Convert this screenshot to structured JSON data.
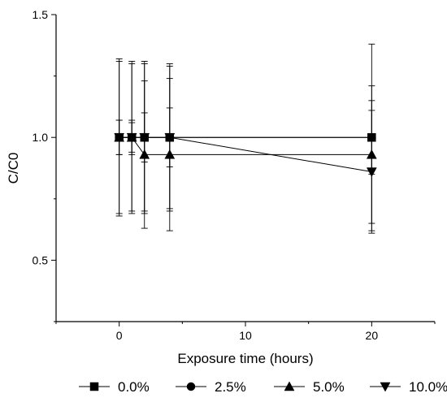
{
  "chart_data": {
    "type": "scatter",
    "xlabel": "Exposure time (hours)",
    "ylabel": "C/C0",
    "title": "",
    "xlim": [
      -5,
      25
    ],
    "ylim": [
      0.25,
      1.5
    ],
    "x_ticks": [
      0,
      10,
      20
    ],
    "x_tick_labels": [
      "0",
      "10",
      "20"
    ],
    "y_ticks": [
      0.5,
      1.0,
      1.5
    ],
    "y_tick_labels": [
      "0.5",
      "1.0",
      "1.5"
    ],
    "grid": false,
    "legend_position": "bottom",
    "series": [
      {
        "name": "0.0%",
        "marker": "square",
        "points": [
          {
            "x": 0,
            "y": 1.0,
            "err": 0.32
          },
          {
            "x": 1,
            "y": 1.0,
            "err": 0.31
          },
          {
            "x": 2,
            "y": 1.0,
            "err": 0.31
          },
          {
            "x": 4,
            "y": 1.0,
            "err": 0.29
          },
          {
            "x": 20,
            "y": 1.0,
            "err": 0.38
          }
        ]
      },
      {
        "name": "2.5%",
        "marker": "circle",
        "points": [
          {
            "x": 0,
            "y": 1.0,
            "err": 0.31
          },
          {
            "x": 1,
            "y": 1.0,
            "err": 0.3
          },
          {
            "x": 2,
            "y": 1.0,
            "err": 0.3
          },
          {
            "x": 4,
            "y": 1.0,
            "err": 0.12
          },
          {
            "x": 20,
            "y": 1.0,
            "err": 0.15
          }
        ]
      },
      {
        "name": "5.0%",
        "marker": "triangle-up",
        "points": [
          {
            "x": 0,
            "y": 1.0,
            "err": 0.07
          },
          {
            "x": 1,
            "y": 1.0,
            "err": 0.06
          },
          {
            "x": 2,
            "y": 0.93,
            "err": 0.3
          },
          {
            "x": 4,
            "y": 0.93,
            "err": 0.31
          },
          {
            "x": 20,
            "y": 0.93,
            "err": 0.28
          }
        ]
      },
      {
        "name": "10.0%",
        "marker": "triangle-down",
        "points": [
          {
            "x": 0,
            "y": 1.0,
            "err": 0.07
          },
          {
            "x": 1,
            "y": 1.0,
            "err": 0.07
          },
          {
            "x": 2,
            "y": 1.0,
            "err": 0.1
          },
          {
            "x": 4,
            "y": 1.0,
            "err": 0.3
          },
          {
            "x": 20,
            "y": 0.86,
            "err": 0.25
          }
        ]
      }
    ]
  }
}
